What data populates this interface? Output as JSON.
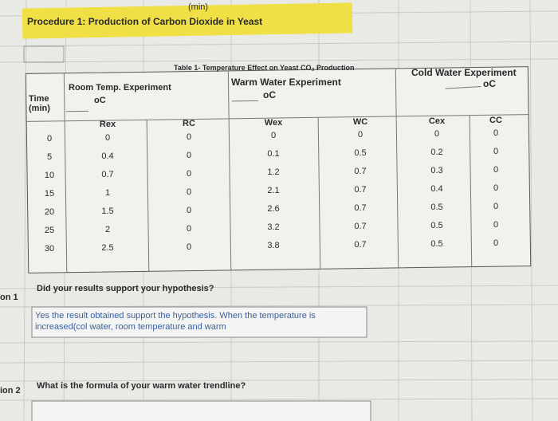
{
  "top_label": "(min)",
  "procedure_title": "Procedure 1: Production of Carbon Dioxide in Yeast",
  "table": {
    "title": "Table 1- Temperature Effect on Yeast CO₂ Production",
    "headers": [
      "Time (min)",
      "Room Temp. Experiment",
      "Warm Water Experiment",
      "Cold Water Experiment"
    ],
    "units": [
      "oC",
      "oC",
      "oC"
    ],
    "columns": [
      "Rex",
      "RC",
      "Wex",
      "WC",
      "Cex",
      "CC"
    ],
    "rows": [
      [
        0,
        0,
        0,
        0,
        0,
        0,
        0
      ],
      [
        5,
        0.4,
        0,
        0.1,
        0.5,
        0.2,
        0
      ],
      [
        10,
        0.7,
        0,
        1.2,
        0.7,
        0.3,
        0
      ],
      [
        15,
        1,
        0,
        2.1,
        0.7,
        0.4,
        0
      ],
      [
        20,
        1.5,
        0,
        2.6,
        0.7,
        0.5,
        0
      ],
      [
        25,
        2,
        0,
        3.2,
        0.7,
        0.5,
        0
      ],
      [
        30,
        2.5,
        0,
        3.8,
        0.7,
        0.5,
        0
      ]
    ]
  },
  "questions": [
    {
      "label": "on 1",
      "text": "Did your results support your hypothesis?",
      "answer": "Yes the result obtained support the hypothesis. When the temperature is increased(col water, room temperature and warm"
    },
    {
      "label": "ion 2",
      "text": "What is the formula of your warm water trendline?"
    }
  ]
}
